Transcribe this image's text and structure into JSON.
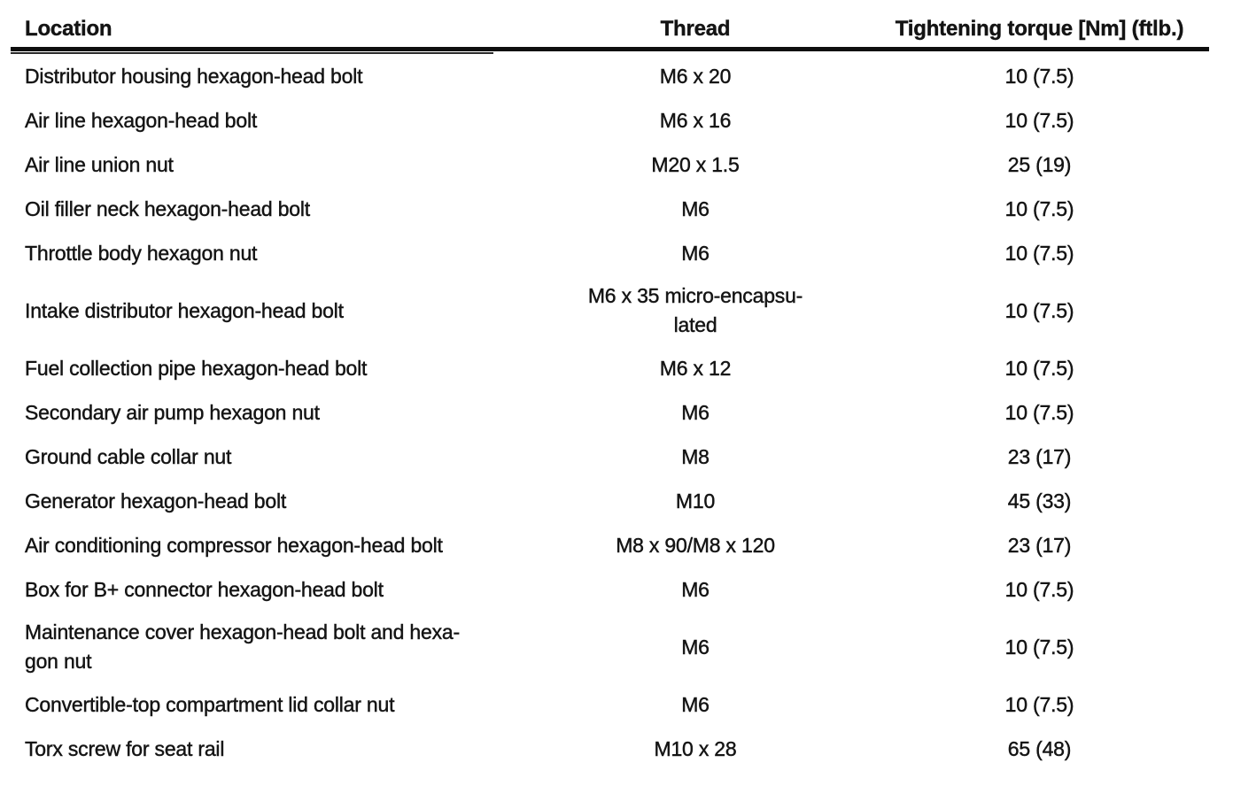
{
  "document": {
    "type": "torque-specification-table",
    "ink_color": "#141414",
    "background_color": "#ffffff"
  },
  "table": {
    "columns": [
      {
        "key": "location",
        "label": "Location",
        "align": "left"
      },
      {
        "key": "thread",
        "label": "Thread",
        "align": "center"
      },
      {
        "key": "torque",
        "label": "Tightening torque [Nm] (ftlb.)",
        "align": "center"
      }
    ],
    "rows": [
      {
        "location": "Distributor housing hexagon-head bolt",
        "thread": "M6 x 20",
        "torque": "10 (7.5)"
      },
      {
        "location": "Air line hexagon-head bolt",
        "thread": "M6 x 16",
        "torque": "10 (7.5)"
      },
      {
        "location": "Air line union nut",
        "thread": "M20 x 1.5",
        "torque": "25 (19)"
      },
      {
        "location": "Oil filler neck hexagon-head bolt",
        "thread": "M6",
        "torque": "10 (7.5)"
      },
      {
        "location": "Throttle body hexagon nut",
        "thread": "M6",
        "torque": "10 (7.5)"
      },
      {
        "location": "Intake distributor hexagon-head bolt",
        "thread": "M6 x 35 micro-encapsu-\nlated",
        "torque": "10 (7.5)"
      },
      {
        "location": "Fuel collection pipe hexagon-head bolt",
        "thread": "M6 x 12",
        "torque": "10 (7.5)"
      },
      {
        "location": "Secondary air pump hexagon nut",
        "thread": "M6",
        "torque": "10 (7.5)"
      },
      {
        "location": "Ground cable collar nut",
        "thread": "M8",
        "torque": "23 (17)"
      },
      {
        "location": "Generator hexagon-head bolt",
        "thread": "M10",
        "torque": "45 (33)"
      },
      {
        "location": "Air conditioning compressor hexagon-head bolt",
        "thread": "M8 x 90/M8 x 120",
        "torque": "23 (17)"
      },
      {
        "location": "Box for B+ connector hexagon-head bolt",
        "thread": "M6",
        "torque": "10 (7.5)"
      },
      {
        "location": "Maintenance cover hexagon-head bolt and hexa-\ngon nut",
        "thread": "M6",
        "torque": "10 (7.5)"
      },
      {
        "location": "Convertible-top compartment lid collar nut",
        "thread": "M6",
        "torque": "10 (7.5)"
      },
      {
        "location": "Torx screw for seat rail",
        "thread": "M10 x 28",
        "torque": "65 (48)"
      }
    ]
  }
}
